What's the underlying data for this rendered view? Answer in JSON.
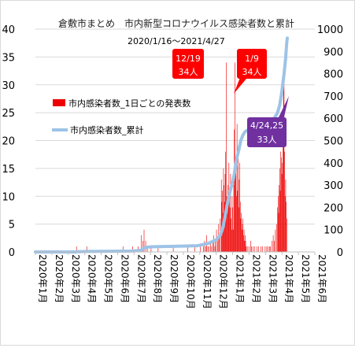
{
  "chart_data": {
    "type": "bar",
    "title": "倉敷市まとめ　市内新型コロナウイルス感染者数と累計",
    "subtitle": "2020/1/16〜2021/4/27",
    "y_left": {
      "min": 0,
      "max": 40,
      "ticks": [
        "0",
        "5",
        "10",
        "15",
        "20",
        "25",
        "30",
        "35",
        "40"
      ]
    },
    "y_right": {
      "min": 0,
      "max": 1000,
      "ticks": [
        "0",
        "100",
        "200",
        "300",
        "400",
        "500",
        "600",
        "700",
        "800",
        "900",
        "1000"
      ]
    },
    "x_ticks": [
      "2020年1月",
      "2020年2月",
      "2020年3月",
      "2020年4月",
      "2020年5月",
      "2020年6月",
      "2020年7月",
      "2020年8月",
      "2020年9月",
      "2020年10月",
      "2020年11月",
      "2020年12月",
      "2021年1月",
      "2021年2月",
      "2021年3月",
      "2021年4月",
      "2021年5月",
      "2021年6月"
    ],
    "x_range_days": [
      0,
      517
    ],
    "series": [
      {
        "name": "市内感染者数_1日ごとの発表数",
        "kind": "bar",
        "color": "#ee0000",
        "points": [
          [
            76,
            1
          ],
          [
            95,
            1
          ],
          [
            162,
            1
          ],
          [
            180,
            1
          ],
          [
            190,
            1
          ],
          [
            196,
            3
          ],
          [
            199,
            2
          ],
          [
            201,
            4
          ],
          [
            204,
            2
          ],
          [
            207,
            1
          ],
          [
            214,
            1
          ],
          [
            227,
            1
          ],
          [
            255,
            1
          ],
          [
            282,
            1
          ],
          [
            295,
            1
          ],
          [
            305,
            1
          ],
          [
            311,
            1
          ],
          [
            313,
            2
          ],
          [
            315,
            1
          ],
          [
            317,
            3
          ],
          [
            319,
            1
          ],
          [
            321,
            1
          ],
          [
            324,
            2
          ],
          [
            326,
            1
          ],
          [
            328,
            2
          ],
          [
            330,
            3
          ],
          [
            332,
            1
          ],
          [
            333,
            2
          ],
          [
            335,
            4
          ],
          [
            337,
            2
          ],
          [
            339,
            5
          ],
          [
            340,
            3
          ],
          [
            342,
            6
          ],
          [
            344,
            13
          ],
          [
            345,
            9
          ],
          [
            346,
            11
          ],
          [
            347,
            7
          ],
          [
            348,
            15
          ],
          [
            349,
            12
          ],
          [
            350,
            9
          ],
          [
            351,
            14
          ],
          [
            352,
            18
          ],
          [
            353,
            34
          ],
          [
            354,
            10
          ],
          [
            355,
            7
          ],
          [
            356,
            12
          ],
          [
            357,
            9
          ],
          [
            358,
            16
          ],
          [
            359,
            11
          ],
          [
            360,
            8
          ],
          [
            361,
            14
          ],
          [
            362,
            6
          ],
          [
            363,
            4
          ],
          [
            364,
            10
          ],
          [
            365,
            8
          ],
          [
            366,
            4
          ],
          [
            367,
            12
          ],
          [
            368,
            22
          ],
          [
            369,
            34
          ],
          [
            370,
            14
          ],
          [
            371,
            17
          ],
          [
            372,
            10
          ],
          [
            373,
            23
          ],
          [
            374,
            11
          ],
          [
            375,
            19
          ],
          [
            376,
            8
          ],
          [
            377,
            13
          ],
          [
            378,
            16
          ],
          [
            379,
            9
          ],
          [
            380,
            6
          ],
          [
            381,
            7
          ],
          [
            382,
            4
          ],
          [
            383,
            5
          ],
          [
            384,
            6
          ],
          [
            385,
            3
          ],
          [
            386,
            4
          ],
          [
            387,
            2
          ],
          [
            388,
            3
          ],
          [
            389,
            2
          ],
          [
            390,
            1
          ],
          [
            392,
            1
          ],
          [
            395,
            1
          ],
          [
            398,
            2
          ],
          [
            400,
            1
          ],
          [
            403,
            1
          ],
          [
            406,
            1
          ],
          [
            410,
            1
          ],
          [
            413,
            1
          ],
          [
            417,
            1
          ],
          [
            420,
            1
          ],
          [
            425,
            1
          ],
          [
            428,
            1
          ],
          [
            430,
            1
          ],
          [
            433,
            1
          ],
          [
            435,
            1
          ],
          [
            438,
            2
          ],
          [
            440,
            3
          ],
          [
            442,
            2
          ],
          [
            444,
            4
          ],
          [
            446,
            5
          ],
          [
            448,
            8
          ],
          [
            449,
            10
          ],
          [
            450,
            7
          ],
          [
            451,
            12
          ],
          [
            452,
            15
          ],
          [
            453,
            11
          ],
          [
            454,
            18
          ],
          [
            455,
            17
          ],
          [
            456,
            14
          ],
          [
            457,
            16
          ],
          [
            458,
            19
          ],
          [
            459,
            33
          ],
          [
            460,
            33
          ],
          [
            461,
            18
          ],
          [
            462,
            10
          ],
          [
            463,
            13
          ],
          [
            464,
            9
          ],
          [
            465,
            6
          ]
        ]
      },
      {
        "name": "市内感染者数_累計",
        "kind": "line",
        "color": "#9dc3e6",
        "points": [
          [
            0,
            0
          ],
          [
            75,
            0
          ],
          [
            76,
            1
          ],
          [
            95,
            2
          ],
          [
            180,
            4
          ],
          [
            190,
            6
          ],
          [
            196,
            9
          ],
          [
            201,
            17
          ],
          [
            204,
            21
          ],
          [
            214,
            23
          ],
          [
            227,
            24
          ],
          [
            255,
            25
          ],
          [
            300,
            28
          ],
          [
            320,
            38
          ],
          [
            335,
            55
          ],
          [
            342,
            75
          ],
          [
            347,
            110
          ],
          [
            352,
            175
          ],
          [
            356,
            225
          ],
          [
            360,
            270
          ],
          [
            364,
            305
          ],
          [
            368,
            350
          ],
          [
            372,
            415
          ],
          [
            376,
            455
          ],
          [
            380,
            500
          ],
          [
            384,
            525
          ],
          [
            388,
            540
          ],
          [
            395,
            550
          ],
          [
            405,
            560
          ],
          [
            420,
            570
          ],
          [
            430,
            575
          ],
          [
            438,
            590
          ],
          [
            444,
            608
          ],
          [
            448,
            625
          ],
          [
            452,
            660
          ],
          [
            456,
            720
          ],
          [
            460,
            800
          ],
          [
            463,
            870
          ],
          [
            465,
            940
          ],
          [
            466,
            960
          ]
        ]
      }
    ],
    "annotations": [
      {
        "label": [
          "12/19",
          "34人"
        ],
        "color": "#ff0000"
      },
      {
        "label": [
          "1/9",
          "34人"
        ],
        "color": "#ff0000"
      },
      {
        "label": [
          "4/24,25",
          "33人"
        ],
        "color": "#7030a0"
      }
    ]
  }
}
